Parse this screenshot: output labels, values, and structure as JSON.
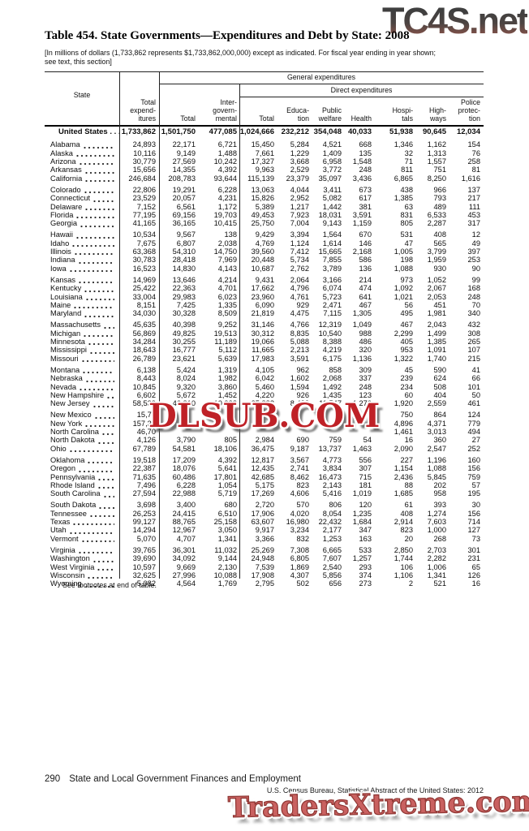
{
  "watermarks": {
    "top": "TC4S.net",
    "middle": "DLSUB.COM",
    "bottom": "TradersXtreme.com"
  },
  "title": "Table 454. State Governments—Expenditures and Debt by State: 2008",
  "note_line1": "[In millions of dollars (1,733,862 represents $1,733,862,000,000) except as indicated. For fiscal year ending in year shown;",
  "note_line2": "see text, this section]",
  "table": {
    "group_headers": {
      "general": "General expenditures",
      "direct": "Direct expenditures"
    },
    "columns": {
      "state": "State",
      "total_expenditures": "Total\nexpend-\nitures",
      "gen_total": "Total",
      "intergovernmental": "Inter-\ngovern-\nmental",
      "direct_total": "Total",
      "education": "Educa-\ntion",
      "public_welfare": "Public\nwelfare",
      "health": "Health",
      "hospitals": "Hospi-\ntals",
      "highways": "High-\nways",
      "police_protection": "Police\nprotec-\ntion"
    },
    "us_row": {
      "name": "United States . . .",
      "values": [
        "1,733,862",
        "1,501,750",
        "477,085",
        "1,024,666",
        "232,212",
        "354,048",
        "40,033",
        "51,938",
        "90,645",
        "12,034"
      ]
    },
    "groups": [
      [
        {
          "name": "Alabama",
          "values": [
            "24,893",
            "22,171",
            "6,721",
            "15,450",
            "5,284",
            "4,521",
            "668",
            "1,346",
            "1,162",
            "154"
          ]
        },
        {
          "name": "Alaska",
          "values": [
            "10,116",
            "9,149",
            "1,488",
            "7,661",
            "1,229",
            "1,409",
            "135",
            "32",
            "1,313",
            "76"
          ]
        },
        {
          "name": "Arizona",
          "values": [
            "30,779",
            "27,569",
            "10,242",
            "17,327",
            "3,668",
            "6,958",
            "1,548",
            "71",
            "1,557",
            "258"
          ]
        },
        {
          "name": "Arkansas",
          "values": [
            "15,656",
            "14,355",
            "4,392",
            "9,963",
            "2,529",
            "3,772",
            "248",
            "811",
            "751",
            "81"
          ]
        },
        {
          "name": "California",
          "values": [
            "246,684",
            "208,783",
            "93,644",
            "115,139",
            "23,379",
            "35,097",
            "3,436",
            "6,865",
            "8,250",
            "1,616"
          ]
        }
      ],
      [
        {
          "name": "Colorado",
          "values": [
            "22,806",
            "19,291",
            "6,228",
            "13,063",
            "4,044",
            "3,411",
            "673",
            "438",
            "966",
            "137"
          ]
        },
        {
          "name": "Connecticut",
          "values": [
            "23,529",
            "20,057",
            "4,231",
            "15,826",
            "2,952",
            "5,082",
            "617",
            "1,385",
            "793",
            "217"
          ]
        },
        {
          "name": "Delaware",
          "values": [
            "7,152",
            "6,561",
            "1,172",
            "5,389",
            "1,217",
            "1,442",
            "381",
            "63",
            "489",
            "111"
          ]
        },
        {
          "name": "Florida",
          "values": [
            "77,195",
            "69,156",
            "19,703",
            "49,453",
            "7,923",
            "18,031",
            "3,591",
            "831",
            "6,533",
            "453"
          ]
        },
        {
          "name": "Georgia",
          "values": [
            "41,165",
            "36,165",
            "10,415",
            "25,750",
            "7,004",
            "9,143",
            "1,159",
            "805",
            "2,287",
            "317"
          ]
        }
      ],
      [
        {
          "name": "Hawaii",
          "values": [
            "10,534",
            "9,567",
            "138",
            "9,429",
            "3,394",
            "1,564",
            "670",
            "531",
            "408",
            "12"
          ]
        },
        {
          "name": "Idaho",
          "values": [
            "7,675",
            "6,807",
            "2,038",
            "4,769",
            "1,124",
            "1,614",
            "146",
            "47",
            "565",
            "49"
          ]
        },
        {
          "name": "Illinois",
          "values": [
            "63,368",
            "54,310",
            "14,750",
            "39,560",
            "7,412",
            "15,665",
            "2,168",
            "1,005",
            "3,799",
            "397"
          ]
        },
        {
          "name": "Indiana",
          "values": [
            "30,783",
            "28,418",
            "7,969",
            "20,448",
            "5,734",
            "7,855",
            "586",
            "198",
            "1,959",
            "253"
          ]
        },
        {
          "name": "Iowa",
          "values": [
            "16,523",
            "14,830",
            "4,143",
            "10,687",
            "2,762",
            "3,789",
            "136",
            "1,088",
            "930",
            "90"
          ]
        }
      ],
      [
        {
          "name": "Kansas",
          "values": [
            "14,969",
            "13,646",
            "4,214",
            "9,431",
            "2,064",
            "3,166",
            "214",
            "973",
            "1,052",
            "99"
          ]
        },
        {
          "name": "Kentucky",
          "values": [
            "25,422",
            "22,363",
            "4,701",
            "17,662",
            "4,796",
            "6,074",
            "474",
            "1,092",
            "2,067",
            "168"
          ]
        },
        {
          "name": "Louisiana",
          "values": [
            "33,004",
            "29,983",
            "6,023",
            "23,960",
            "4,761",
            "5,723",
            "641",
            "1,021",
            "2,053",
            "248"
          ]
        },
        {
          "name": "Maine",
          "values": [
            "8,151",
            "7,425",
            "1,335",
            "6,090",
            "929",
            "2,471",
            "467",
            "56",
            "451",
            "70"
          ]
        },
        {
          "name": "Maryland",
          "values": [
            "34,030",
            "30,328",
            "8,509",
            "21,819",
            "4,475",
            "7,115",
            "1,305",
            "495",
            "1,981",
            "340"
          ]
        }
      ],
      [
        {
          "name": "Massachusetts",
          "values": [
            "45,635",
            "40,398",
            "9,252",
            "31,146",
            "4,766",
            "12,319",
            "1,049",
            "467",
            "2,043",
            "432"
          ]
        },
        {
          "name": "Michigan",
          "values": [
            "56,869",
            "49,825",
            "19,513",
            "30,312",
            "8,835",
            "10,540",
            "988",
            "2,299",
            "1,499",
            "308"
          ]
        },
        {
          "name": "Minnesota",
          "values": [
            "34,284",
            "30,255",
            "11,189",
            "19,066",
            "5,088",
            "8,388",
            "486",
            "405",
            "1,385",
            "265"
          ]
        },
        {
          "name": "Mississippi",
          "values": [
            "18,643",
            "16,777",
            "5,112",
            "11,665",
            "2,213",
            "4,219",
            "320",
            "953",
            "1,091",
            "107"
          ]
        },
        {
          "name": "Missouri",
          "values": [
            "26,789",
            "23,621",
            "5,639",
            "17,983",
            "3,591",
            "6,175",
            "1,136",
            "1,322",
            "1,740",
            "215"
          ]
        }
      ],
      [
        {
          "name": "Montana",
          "values": [
            "6,138",
            "5,424",
            "1,319",
            "4,105",
            "962",
            "858",
            "309",
            "45",
            "590",
            "41"
          ]
        },
        {
          "name": "Nebraska",
          "values": [
            "8,443",
            "8,024",
            "1,982",
            "6,042",
            "1,602",
            "2,068",
            "337",
            "239",
            "624",
            "66"
          ]
        },
        {
          "name": "Nevada",
          "values": [
            "10,845",
            "9,320",
            "3,860",
            "5,460",
            "1,594",
            "1,492",
            "248",
            "234",
            "508",
            "101"
          ]
        },
        {
          "name": "New Hampshire",
          "values": [
            "6,602",
            "5,672",
            "1,452",
            "4,220",
            "926",
            "1,435",
            "123",
            "60",
            "404",
            "50"
          ]
        },
        {
          "name": "New Jersey",
          "values": [
            "58,539",
            "46,810",
            "10,928",
            "35,883",
            "8,433",
            "11,547",
            "1,270",
            "1,920",
            "2,559",
            "461"
          ]
        }
      ],
      [
        {
          "name": "New Mexico",
          "values": [
            "15,79",
            "",
            "",
            "",
            "",
            "",
            "",
            "750",
            "864",
            "124"
          ]
        },
        {
          "name": "New York",
          "values": [
            "157,39",
            "",
            "",
            "",
            "",
            "",
            "",
            "4,896",
            "4,371",
            "779"
          ]
        },
        {
          "name": "North Carolina",
          "values": [
            "46,70",
            "",
            "",
            "",
            "",
            "",
            "",
            "1,461",
            "3,013",
            "494"
          ]
        },
        {
          "name": "North Dakota",
          "values": [
            "4,126",
            "3,790",
            "805",
            "2,984",
            "690",
            "759",
            "54",
            "16",
            "360",
            "27"
          ]
        },
        {
          "name": "Ohio",
          "values": [
            "67,789",
            "54,581",
            "18,106",
            "36,475",
            "9,187",
            "13,737",
            "1,463",
            "2,090",
            "2,547",
            "252"
          ]
        }
      ],
      [
        {
          "name": "Oklahoma",
          "values": [
            "19,518",
            "17,209",
            "4,392",
            "12,817",
            "3,567",
            "4,773",
            "556",
            "227",
            "1,196",
            "160"
          ]
        },
        {
          "name": "Oregon",
          "values": [
            "22,387",
            "18,076",
            "5,641",
            "12,435",
            "2,741",
            "3,834",
            "307",
            "1,154",
            "1,088",
            "156"
          ]
        },
        {
          "name": "Pennsylvania",
          "values": [
            "71,635",
            "60,486",
            "17,801",
            "42,685",
            "8,462",
            "16,473",
            "715",
            "2,436",
            "5,845",
            "759"
          ]
        },
        {
          "name": "Rhode Island",
          "values": [
            "7,496",
            "6,228",
            "1,054",
            "5,175",
            "823",
            "2,143",
            "181",
            "88",
            "202",
            "57"
          ]
        },
        {
          "name": "South Carolina",
          "values": [
            "27,594",
            "22,988",
            "5,719",
            "17,269",
            "4,606",
            "5,416",
            "1,019",
            "1,685",
            "958",
            "195"
          ]
        }
      ],
      [
        {
          "name": "South Dakota",
          "values": [
            "3,698",
            "3,400",
            "680",
            "2,720",
            "570",
            "806",
            "120",
            "61",
            "393",
            "30"
          ]
        },
        {
          "name": "Tennessee",
          "values": [
            "26,253",
            "24,415",
            "6,510",
            "17,906",
            "4,020",
            "8,054",
            "1,235",
            "408",
            "1,274",
            "156"
          ]
        },
        {
          "name": "Texas",
          "values": [
            "99,127",
            "88,765",
            "25,158",
            "63,607",
            "16,980",
            "22,432",
            "1,684",
            "2,914",
            "7,603",
            "714"
          ]
        },
        {
          "name": "Utah",
          "values": [
            "14,294",
            "12,967",
            "3,050",
            "9,917",
            "3,234",
            "2,177",
            "347",
            "823",
            "1,000",
            "127"
          ]
        },
        {
          "name": "Vermont",
          "values": [
            "5,070",
            "4,707",
            "1,341",
            "3,366",
            "832",
            "1,253",
            "163",
            "20",
            "268",
            "73"
          ]
        }
      ],
      [
        {
          "name": "Virginia",
          "values": [
            "39,765",
            "36,301",
            "11,032",
            "25,269",
            "7,308",
            "6,665",
            "533",
            "2,850",
            "2,703",
            "301"
          ]
        },
        {
          "name": "Washington",
          "values": [
            "39,690",
            "34,092",
            "9,144",
            "24,948",
            "6,805",
            "7,607",
            "1,257",
            "1,744",
            "2,282",
            "231"
          ]
        },
        {
          "name": "West Virginia",
          "values": [
            "10,597",
            "9,669",
            "2,130",
            "7,539",
            "1,869",
            "2,540",
            "293",
            "106",
            "1,006",
            "65"
          ]
        },
        {
          "name": "Wisconsin",
          "values": [
            "32,625",
            "27,996",
            "10,088",
            "17,908",
            "4,307",
            "5,856",
            "374",
            "1,106",
            "1,341",
            "126"
          ]
        },
        {
          "name": "Wyoming",
          "values": [
            "5,082",
            "4,564",
            "1,769",
            "2,795",
            "502",
            "656",
            "273",
            "2",
            "521",
            "16"
          ]
        }
      ]
    ]
  },
  "footnote": "See footnotes at end of table.",
  "footer": {
    "page_number": "290",
    "section_title": "State and Local Government Finances and Employment",
    "source": "U.S. Census Bureau, Statistical Abstract of the United States: 2012"
  }
}
